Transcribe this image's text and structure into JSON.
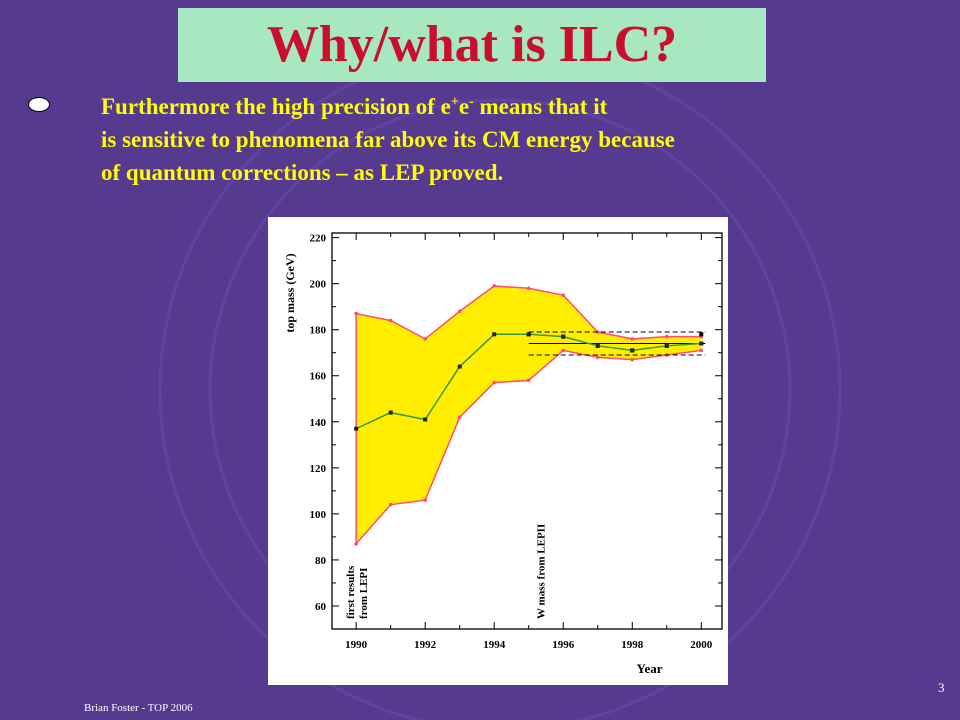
{
  "slide": {
    "title": "Why/what is ILC?",
    "bullet": {
      "line1_pre": "Furthermore the high precision of e",
      "sup1": "+",
      "line1_mid": "e",
      "sup2": "-",
      "line1_post": " means that it",
      "line2": "is sensitive to phenomena far above its CM energy because",
      "line3": "of quantum corrections – as LEP proved."
    },
    "footer": "Brian Foster - TOP 2006",
    "page_number": "3"
  },
  "colors": {
    "background": "#553a8f",
    "title_box": "#a8e8c0",
    "title_text": "#c8102e",
    "body_text": "#ffff00",
    "band_fill": "#ffee00",
    "band_edge": "#ff4d6d",
    "central_line": "#3a9a3a"
  },
  "chart_data": {
    "type": "area",
    "xlabel": "Year",
    "ylabel": "top mass (GeV)",
    "xlim": [
      1989.3,
      2000.6
    ],
    "ylim": [
      50,
      222
    ],
    "x_ticks": [
      "1990",
      "1992",
      "1994",
      "1996",
      "1998",
      "2000"
    ],
    "y_ticks": [
      "60",
      "80",
      "100",
      "120",
      "140",
      "160",
      "180",
      "200",
      "220"
    ],
    "grid": false,
    "series": [
      {
        "role": "upper_bound",
        "x": [
          1990,
          1991,
          1992,
          1993,
          1994,
          1995,
          1996,
          1997,
          1998,
          1999,
          2000
        ],
        "values": [
          187,
          184,
          176,
          188,
          199,
          198,
          195,
          179,
          176,
          177,
          177
        ]
      },
      {
        "role": "central",
        "x": [
          1990,
          1991,
          1992,
          1993,
          1994,
          1995,
          1996,
          1997,
          1998,
          1999,
          2000
        ],
        "values": [
          137,
          144,
          141,
          164,
          178,
          178,
          177,
          173,
          171,
          173,
          174
        ]
      },
      {
        "role": "lower_bound",
        "x": [
          1990,
          1991,
          1992,
          1993,
          1994,
          1995,
          1996,
          1997,
          1998,
          1999,
          2000
        ],
        "values": [
          87,
          104,
          106,
          142,
          157,
          158,
          171,
          168,
          167,
          169,
          171
        ]
      }
    ],
    "w_mass_band": {
      "x": [
        1995,
        2000
      ],
      "upper": 179,
      "central": 174,
      "lower": 169,
      "points": [
        {
          "x": 1995,
          "y": 178
        },
        {
          "x": 1996,
          "y": 177
        },
        {
          "x": 1997,
          "y": 173
        },
        {
          "x": 1998,
          "y": 171
        },
        {
          "x": 1999,
          "y": 173
        },
        {
          "x": 2000,
          "y": 178
        },
        {
          "x": 2000,
          "y": 174
        }
      ]
    },
    "annotations": [
      {
        "text_line1": "first results",
        "text_line2": "from LEPI",
        "x": 1990
      },
      {
        "text": "W mass from LEPII",
        "x": 1995
      }
    ]
  }
}
